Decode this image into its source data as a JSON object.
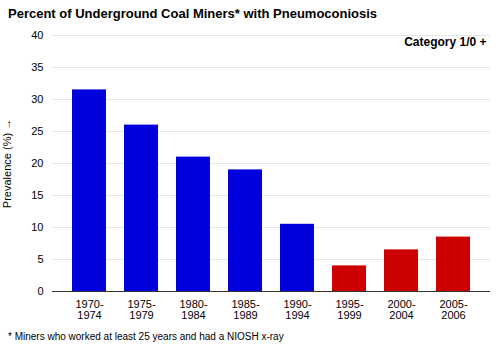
{
  "chart_data": {
    "type": "bar",
    "title": "Percent of Underground Coal Miners* with Pneumoconiosis",
    "annotation": "Category 1/0 +",
    "ylabel": "Prevalence (%)",
    "footnote": "* Miners who worked at least 25 years and had a NIOSH x-ray",
    "categories": [
      "1970-\n1974",
      "1975-\n1979",
      "1980-\n1984",
      "1985-\n1989",
      "1990-\n1994",
      "1995-\n1999",
      "2000-\n2004",
      "2005-\n2006"
    ],
    "values": [
      31.5,
      26.0,
      21.0,
      19.0,
      10.5,
      4.0,
      6.5,
      8.5
    ],
    "colors": [
      "#0000dd",
      "#0000dd",
      "#0000dd",
      "#0000dd",
      "#0000dd",
      "#cc0000",
      "#cc0000",
      "#cc0000"
    ],
    "ylim": [
      0,
      40
    ],
    "yticks": [
      0,
      5,
      10,
      15,
      20,
      25,
      30,
      35,
      40
    ],
    "grid": true
  }
}
